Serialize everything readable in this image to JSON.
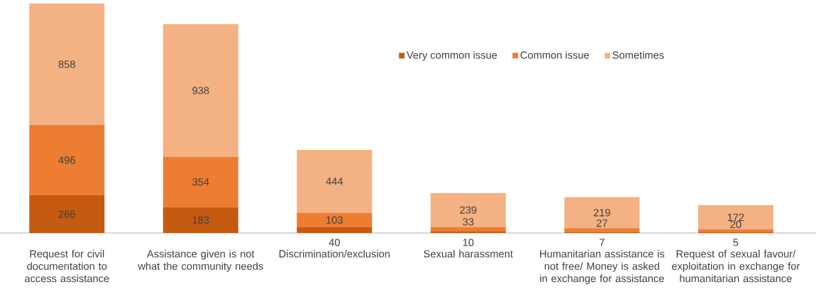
{
  "chart_data": {
    "type": "bar",
    "stacked": true,
    "data_labels": true,
    "legend": "top right",
    "tick_labels": "x",
    "categories": [
      "Request for civil documentation to access assistance",
      "Assistance given is not what the community needs",
      "Discrimination/exclusion",
      "Sexual harassment",
      "Humanitarian assistance is not free/ Money is asked in exchange for assistance",
      "Request of sexual favour/ exploitation in exchange for humanitarian assistance"
    ],
    "series": [
      {
        "name": "Very common issue",
        "color": "#c55a11",
        "values": [
          266,
          183,
          40,
          10,
          7,
          5
        ]
      },
      {
        "name": "Common issue",
        "color": "#ed7d31",
        "values": [
          496,
          354,
          103,
          33,
          27,
          20
        ]
      },
      {
        "name": "Sometimes",
        "color": "#f4b183",
        "values": [
          858,
          938,
          444,
          239,
          219,
          172
        ]
      }
    ]
  }
}
